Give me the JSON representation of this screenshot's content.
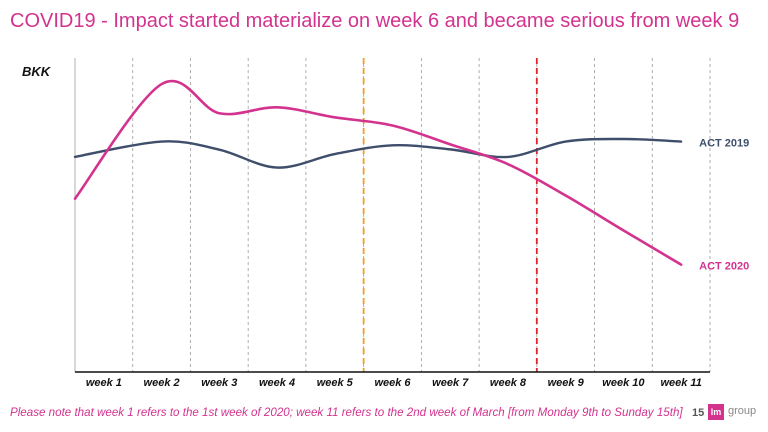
{
  "slide": {
    "title": "COVID19 - Impact started materialize on week 6 and became serious from week 9",
    "footnote": "Please note that week 1 refers to the 1st week of 2020; week 11 refers to the 2nd week of March [from Monday 9th to Sunday 15th]",
    "page_number": "15",
    "logo_mark": "lm",
    "logo_word": "group"
  },
  "colors": {
    "act_2019": "#3e4e6b",
    "act_2020": "#d3338f",
    "marker_week6": "#f0a020",
    "marker_week9": "#e0242c",
    "gridline": "#9a9a9a"
  },
  "chart_data": {
    "type": "line",
    "ylabel": "BKK",
    "categories": [
      "week 1",
      "week 2",
      "week 3",
      "week 4",
      "week 5",
      "week 6",
      "week 7",
      "week 8",
      "week 9",
      "week 10",
      "week 11"
    ],
    "ylim": [
      0,
      100
    ],
    "y_tick_labels_shown": false,
    "grid": "vertical dashed",
    "series": [
      {
        "name": "ACT 2019",
        "color": "#3e4e6b",
        "values": [
          68.5,
          73.4,
          70.8,
          65.1,
          69.4,
          72.2,
          70.9,
          68.5,
          73.4,
          74.2,
          73.4
        ]
      },
      {
        "name": "ACT 2020",
        "color": "#d3338f",
        "values": [
          55.2,
          91.7,
          82.4,
          84.3,
          81.1,
          78.5,
          72.5,
          66.2,
          56.2,
          45.1,
          34.2
        ]
      }
    ],
    "annotations": [
      {
        "type": "vertical-line",
        "x": "week 6",
        "color": "#f0a020",
        "style": "dashed"
      },
      {
        "type": "vertical-line",
        "x": "week 9",
        "color": "#e0242c",
        "style": "dashed"
      }
    ]
  }
}
